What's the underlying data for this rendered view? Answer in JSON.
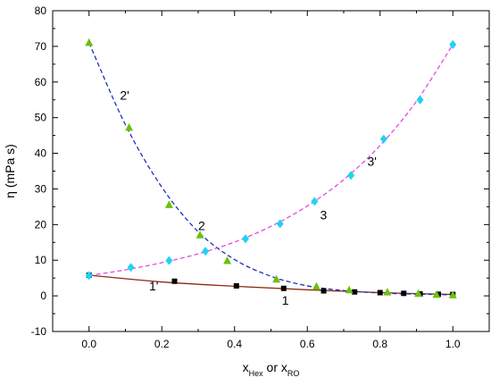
{
  "chart_data": {
    "type": "scatter",
    "title": "",
    "ylabel": "η (mPa s)",
    "xlabel": {
      "parts": [
        {
          "text": "x",
          "sub": false
        },
        {
          "text": "Hex",
          "sub": true
        },
        {
          "text": " or x",
          "sub": false
        },
        {
          "text": "RO",
          "sub": true
        }
      ]
    },
    "xlim": [
      -0.1,
      1.1
    ],
    "ylim": [
      -10,
      80
    ],
    "xticks": [
      0.0,
      0.2,
      0.4,
      0.6,
      0.8,
      1.0
    ],
    "xtick_labels": [
      "0.0",
      "0.2",
      "0.4",
      "0.6",
      "0.8",
      "1.0"
    ],
    "yticks": [
      -10,
      0,
      10,
      20,
      30,
      40,
      50,
      60,
      70,
      80
    ],
    "ytick_labels": [
      "-10",
      "0",
      "10",
      "20",
      "30",
      "40",
      "50",
      "60",
      "70",
      "80"
    ],
    "grid": false,
    "series": [
      {
        "label": "1",
        "label_at": [
          0.53,
          -2.5
        ],
        "marker": "square",
        "marker_color": "#000000",
        "x": [
          0.0,
          0.235,
          0.405,
          0.535,
          0.645,
          0.73,
          0.8,
          0.865,
          0.91,
          0.96,
          1.0
        ],
        "y": [
          5.8,
          4.1,
          2.8,
          2.1,
          1.4,
          1.1,
          0.9,
          0.7,
          0.55,
          0.45,
          0.4
        ]
      },
      {
        "label": "1'",
        "label_at": [
          0.165,
          1.5
        ],
        "fit_style": "solid",
        "fit_color": "#8b2a12",
        "fit_x": [
          0.0,
          0.2,
          0.4,
          0.6,
          0.8,
          1.0
        ],
        "fit_y": [
          5.8,
          3.9,
          2.7,
          1.7,
          0.9,
          0.4
        ]
      },
      {
        "label": "2",
        "label_at": [
          0.3,
          18.5
        ],
        "marker": "triangle",
        "marker_color": "#6cc00d",
        "x": [
          0.0,
          0.11,
          0.22,
          0.305,
          0.38,
          0.515,
          0.625,
          0.715,
          0.82,
          0.905,
          0.955,
          1.0
        ],
        "y": [
          71.0,
          47.2,
          25.5,
          17.0,
          9.8,
          4.6,
          2.6,
          1.6,
          1.0,
          0.6,
          0.3,
          0.2
        ]
      },
      {
        "label": "2'",
        "label_at": [
          0.085,
          55.0
        ],
        "fit_style": "dash",
        "fit_color": "#1f2fbf",
        "fit_x": [
          0.0,
          0.1,
          0.2,
          0.3,
          0.4,
          0.5,
          0.6,
          0.7,
          0.8,
          0.9,
          1.0
        ],
        "fit_y": [
          71.0,
          48.0,
          30.5,
          18.0,
          10.2,
          5.5,
          2.8,
          1.5,
          0.8,
          0.5,
          0.3
        ]
      },
      {
        "label": "3",
        "label_at": [
          0.635,
          21.5
        ],
        "marker": "diamond",
        "marker_color": "#1ed3f2",
        "x": [
          0.0,
          0.115,
          0.22,
          0.32,
          0.43,
          0.525,
          0.62,
          0.72,
          0.81,
          0.91,
          1.0
        ],
        "y": [
          5.7,
          8.0,
          9.9,
          12.5,
          16.0,
          20.2,
          26.5,
          33.8,
          44.0,
          55.0,
          70.5
        ]
      },
      {
        "label": "3'",
        "label_at": [
          0.765,
          36.5
        ],
        "fit_style": "dash",
        "fit_color": "#e34be3",
        "fit_x": [
          0.0,
          0.1,
          0.2,
          0.3,
          0.4,
          0.5,
          0.6,
          0.7,
          0.8,
          0.9,
          1.0
        ],
        "fit_y": [
          5.7,
          7.3,
          9.3,
          11.8,
          15.1,
          19.5,
          25.2,
          32.6,
          42.2,
          54.6,
          70.5
        ]
      }
    ]
  }
}
